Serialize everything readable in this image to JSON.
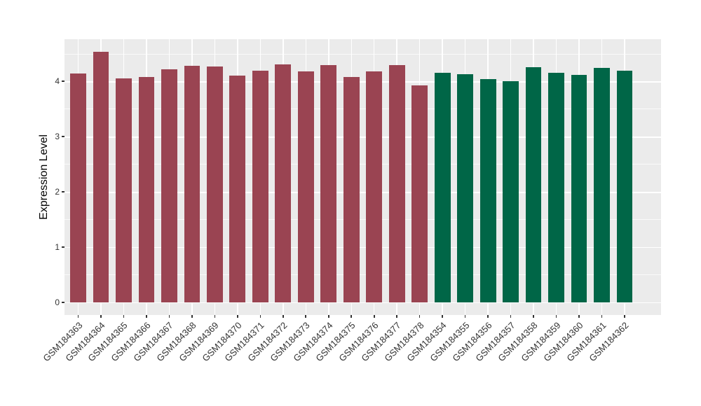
{
  "chart_data": {
    "type": "bar",
    "title": "",
    "xlabel": "",
    "ylabel": "Expression Level",
    "legend": "none",
    "grid": true,
    "panel_bg": "#EBEBEB",
    "grid_color": "#FFFFFF",
    "tick_color": "#333333",
    "categories": [
      "GSM184363",
      "GSM184364",
      "GSM184365",
      "GSM184366",
      "GSM184367",
      "GSM184368",
      "GSM184369",
      "GSM184370",
      "GSM184371",
      "GSM184372",
      "GSM184373",
      "GSM184374",
      "GSM184375",
      "GSM184376",
      "GSM184377",
      "GSM184378",
      "GSM184354",
      "GSM184355",
      "GSM184356",
      "GSM184357",
      "GSM184358",
      "GSM184359",
      "GSM184360",
      "GSM184361",
      "GSM184362"
    ],
    "values": [
      4.14,
      4.53,
      4.05,
      4.08,
      4.22,
      4.28,
      4.26,
      4.1,
      4.19,
      4.31,
      4.18,
      4.29,
      4.08,
      4.18,
      4.29,
      3.93,
      4.15,
      4.13,
      4.04,
      4.0,
      4.25,
      4.15,
      4.12,
      4.24,
      4.19
    ],
    "bar_groups": [
      0,
      0,
      0,
      0,
      0,
      0,
      0,
      0,
      0,
      0,
      0,
      0,
      0,
      0,
      0,
      0,
      1,
      1,
      1,
      1,
      1,
      1,
      1,
      1,
      1
    ],
    "group_colors": [
      "#9A4452",
      "#006647"
    ],
    "ylim": [
      -0.23,
      4.76
    ],
    "yticks": [
      0,
      1,
      2,
      3,
      4
    ],
    "yminor": [
      0.5,
      1.5,
      2.5,
      3.5,
      4.5
    ],
    "bar_width_fraction": 0.7
  }
}
